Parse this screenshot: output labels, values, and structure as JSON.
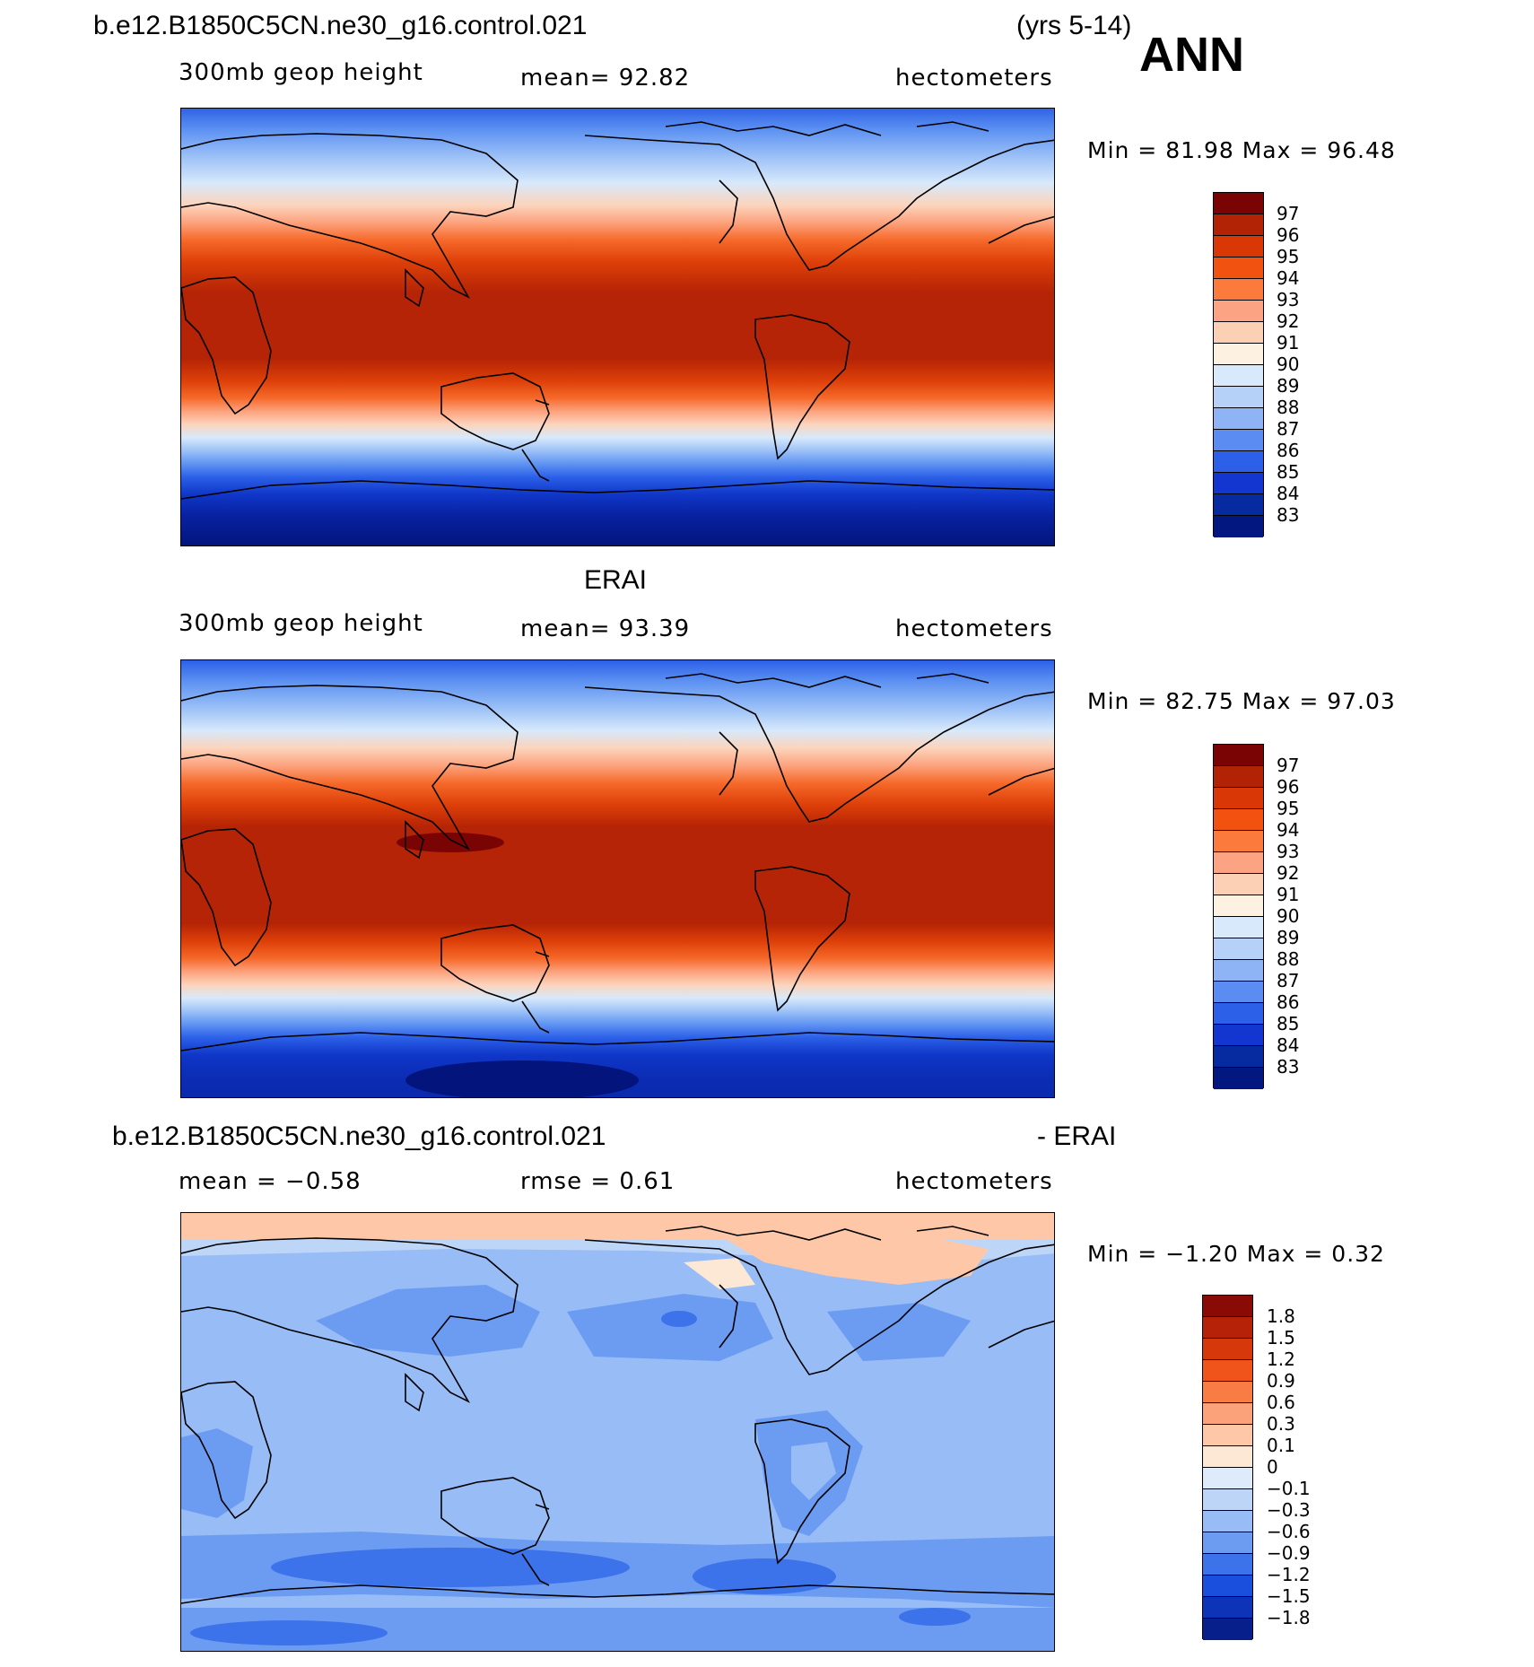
{
  "figure": {
    "season": "ANN",
    "years": "(yrs 5-14)"
  },
  "panels": [
    {
      "title": "b.e12.B1850C5CN.ne30_g16.control.021",
      "left_label": "300mb  geop  height",
      "center_label": "mean=   92.82",
      "right_label": "hectometers",
      "min_max": "Min  =    81.98  Max  =    96.48",
      "colorbar_labels": [
        "97",
        "96",
        "95",
        "94",
        "93",
        "92",
        "91",
        "90",
        "89",
        "88",
        "87",
        "86",
        "85",
        "84",
        "83"
      ],
      "colorbar_colors": [
        "#7a0403",
        "#b22305",
        "#d93806",
        "#f1520f",
        "#fb7a3c",
        "#fca384",
        "#fcd0b5",
        "#fdf2e2",
        "#d7e9fb",
        "#b6d1f8",
        "#8fb4f6",
        "#5a8cf2",
        "#2c60e8",
        "#1236cf",
        "#062aa0",
        "#031780"
      ],
      "field_colors": [
        "#03147c",
        "#08219f",
        "#0f36c8",
        "#2c60e8",
        "#5f93f2",
        "#9cc1f7",
        "#d7e9fb",
        "#fcd4bc",
        "#fca27d",
        "#f6692a",
        "#dd3f08",
        "#b52406"
      ]
    },
    {
      "title": "ERAI",
      "left_label": "300mb  geop  height",
      "center_label": "mean=   93.39",
      "right_label": "hectometers",
      "min_max": "Min  =    82.75  Max  =    97.03",
      "colorbar_labels": [
        "97",
        "96",
        "95",
        "94",
        "93",
        "92",
        "91",
        "90",
        "89",
        "88",
        "87",
        "86",
        "85",
        "84",
        "83"
      ],
      "colorbar_colors": [
        "#7a0403",
        "#b22305",
        "#d93806",
        "#f1520f",
        "#fb7a3c",
        "#fca384",
        "#fcd0b5",
        "#fdf2e2",
        "#d7e9fb",
        "#b6d1f8",
        "#8fb4f6",
        "#5a8cf2",
        "#2c60e8",
        "#1236cf",
        "#062aa0",
        "#031780"
      ]
    },
    {
      "title": "b.e12.B1850C5CN.ne30_g16.control.021",
      "title_suffix": "- ERAI",
      "left_label": "mean  =   −0.58",
      "center_label": "rmse  =     0.61",
      "right_label": "hectometers",
      "min_max": "Min  =   −1.20  Max  =     0.32",
      "colorbar_labels": [
        "1.8",
        "1.5",
        "1.2",
        "0.9",
        "0.6",
        "0.3",
        "0.1",
        "0",
        "−0.1",
        "−0.3",
        "−0.6",
        "−0.9",
        "−1.2",
        "−1.5",
        "−1.8"
      ],
      "colorbar_colors": [
        "#8a0a06",
        "#b52208",
        "#d6380b",
        "#f0541a",
        "#f87c43",
        "#fba27a",
        "#fdc7a8",
        "#fde8d6",
        "#ddebfa",
        "#bdd6f8",
        "#97bcf6",
        "#6c9cf2",
        "#3c73ea",
        "#1a4fde",
        "#0d34b8",
        "#061f8a"
      ]
    }
  ]
}
